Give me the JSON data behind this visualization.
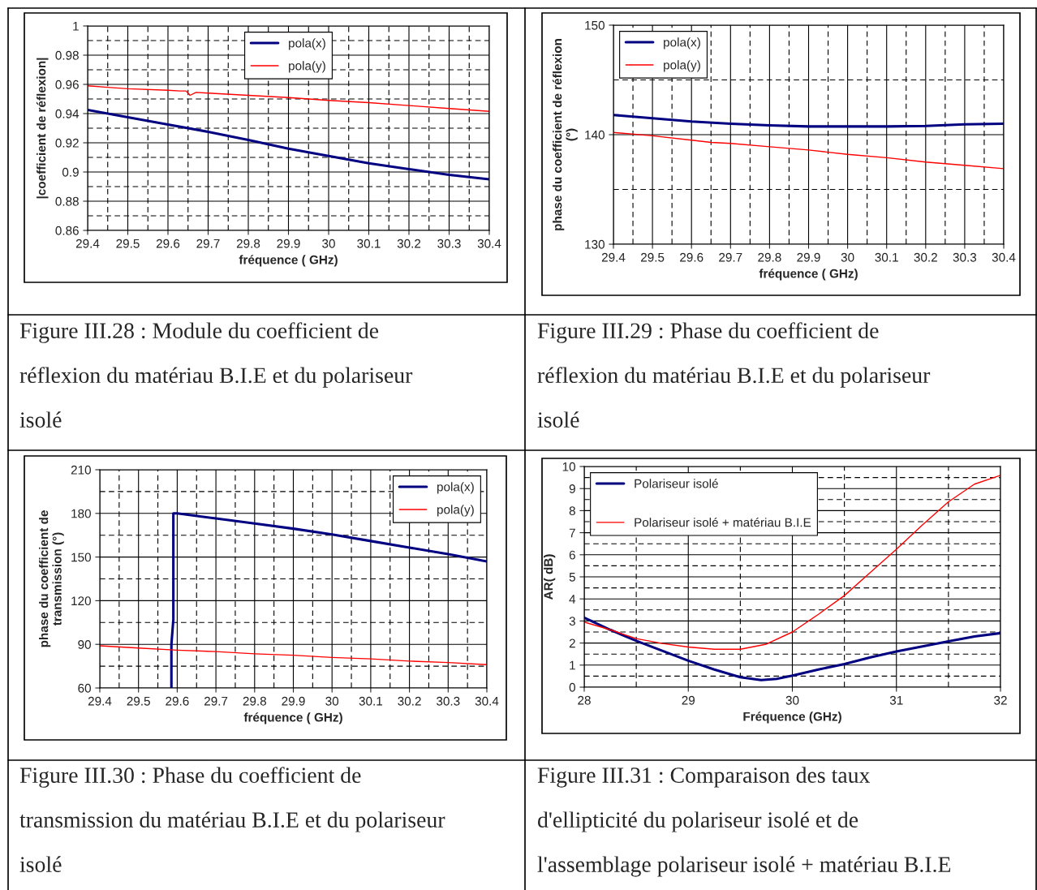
{
  "chart_data": [
    {
      "type": "line",
      "xlabel": "fréquence ( GHz)",
      "ylabel": "|coefficient de réflexion|",
      "xlim": [
        29.4,
        30.4
      ],
      "ylim": [
        0.86,
        1
      ],
      "xticks": [
        29.4,
        29.5,
        29.6,
        29.7,
        29.8,
        29.9,
        30,
        30.1,
        30.2,
        30.3,
        30.4
      ],
      "yticks": [
        0.86,
        0.88,
        0.9,
        0.92,
        0.94,
        0.96,
        0.98,
        1
      ],
      "grid": true,
      "legend": "top",
      "marker": "none",
      "line_style": "solid",
      "series": [
        {
          "name": "pola(x)",
          "color": "#000080",
          "x": [
            29.4,
            29.5,
            29.6,
            29.7,
            29.8,
            29.9,
            30.0,
            30.1,
            30.2,
            30.3,
            30.4
          ],
          "values": [
            0.9425,
            0.9375,
            0.9325,
            0.9275,
            0.922,
            0.916,
            0.911,
            0.906,
            0.902,
            0.898,
            0.895
          ]
        },
        {
          "name": "pola(y)",
          "color": "#ff0000",
          "x": [
            29.4,
            29.45,
            29.5,
            29.6,
            29.63,
            29.645,
            29.655,
            29.67,
            29.7,
            29.8,
            29.9,
            30.0,
            30.1,
            30.2,
            30.3,
            30.4
          ],
          "values": [
            0.959,
            0.958,
            0.957,
            0.956,
            0.9555,
            0.9555,
            0.9525,
            0.9545,
            0.954,
            0.9525,
            0.951,
            0.949,
            0.9475,
            0.9455,
            0.9435,
            0.9415
          ]
        }
      ],
      "annotations": [
        "Figure III.28 : Module du coefficient de",
        "réflexion du matériau B.I.E et du polariseur",
        "isolé"
      ]
    },
    {
      "type": "line",
      "xlabel": "fréquence ( GHz)",
      "ylabel": "phase du coefficient de réflexion\n(°)",
      "xlim": [
        29.4,
        30.4
      ],
      "ylim": [
        130,
        150
      ],
      "xticks": [
        29.4,
        29.5,
        29.6,
        29.7,
        29.8,
        29.9,
        30,
        30.1,
        30.2,
        30.3,
        30.4
      ],
      "yticks": [
        130,
        140,
        150
      ],
      "grid": true,
      "legend": "top left",
      "marker": "none",
      "line_style": "solid",
      "series": [
        {
          "name": "pola(x)",
          "color": "#000080",
          "x": [
            29.4,
            29.5,
            29.6,
            29.7,
            29.8,
            29.9,
            30.0,
            30.1,
            30.2,
            30.3,
            30.4
          ],
          "values": [
            141.8,
            141.5,
            141.2,
            141.0,
            140.85,
            140.75,
            140.75,
            140.75,
            140.8,
            140.95,
            141.0
          ]
        },
        {
          "name": "pola(y)",
          "color": "#ff0000",
          "x": [
            29.4,
            29.5,
            29.6,
            29.65,
            29.7,
            29.8,
            29.9,
            30.0,
            30.1,
            30.2,
            30.3,
            30.4
          ],
          "values": [
            140.2,
            139.9,
            139.5,
            139.3,
            139.2,
            138.9,
            138.6,
            138.2,
            137.9,
            137.5,
            137.2,
            136.9
          ]
        }
      ],
      "annotations": [
        "Figure III.29 : Phase du coefficient de",
        "réflexion du matériau B.I.E et du polariseur",
        "isolé"
      ]
    },
    {
      "type": "line",
      "xlabel": "fréquence ( GHz)",
      "ylabel": "phase du coefficient de\ntransmission (°)",
      "xlim": [
        29.4,
        30.4
      ],
      "ylim": [
        60,
        210
      ],
      "xticks": [
        29.4,
        29.5,
        29.6,
        29.7,
        29.8,
        29.9,
        30,
        30.1,
        30.2,
        30.3,
        30.4
      ],
      "yticks": [
        60,
        90,
        120,
        150,
        180,
        210
      ],
      "grid": true,
      "legend": "top right",
      "marker": "none",
      "line_style": "solid",
      "series": [
        {
          "name": "pola(x)",
          "color": "#000080",
          "x": [
            29.585,
            29.585,
            29.59,
            29.59,
            29.6,
            29.7,
            29.8,
            29.9,
            30.0,
            30.1,
            30.2,
            30.3,
            30.4
          ],
          "values": [
            60,
            90,
            107,
            180,
            180,
            176.5,
            173,
            169.5,
            165.5,
            161,
            156.5,
            152,
            147
          ]
        },
        {
          "name": "pola(y)",
          "color": "#ff0000",
          "x": [
            29.4,
            29.5,
            29.6,
            29.7,
            29.8,
            29.9,
            30.0,
            30.1,
            30.2,
            30.3,
            30.4
          ],
          "values": [
            89,
            87.5,
            86,
            85,
            83.5,
            82.5,
            81,
            80,
            78.5,
            77.5,
            76
          ]
        }
      ],
      "annotations": [
        "Figure III.30 : Phase du coefficient de",
        "transmission du matériau B.I.E et du polariseur",
        "isolé"
      ]
    },
    {
      "type": "line",
      "xlabel": "Fréquence (GHz)",
      "ylabel": "AR( dB)",
      "xlim": [
        28,
        32
      ],
      "ylim": [
        0,
        10
      ],
      "xticks": [
        28,
        29,
        30,
        31,
        32
      ],
      "yticks": [
        0,
        1,
        2,
        3,
        4,
        5,
        6,
        7,
        8,
        9,
        10
      ],
      "grid": true,
      "legend": "top left",
      "marker": "none",
      "line_style": "solid",
      "series": [
        {
          "name": "Polariseur isolé",
          "color": "#000080",
          "x": [
            28,
            28.25,
            28.5,
            28.75,
            29,
            29.25,
            29.5,
            29.7,
            29.85,
            30,
            30.25,
            30.5,
            30.75,
            31,
            31.25,
            31.5,
            31.75,
            32
          ],
          "values": [
            3.15,
            2.6,
            2.1,
            1.65,
            1.2,
            0.8,
            0.45,
            0.32,
            0.38,
            0.52,
            0.8,
            1.05,
            1.35,
            1.62,
            1.85,
            2.08,
            2.3,
            2.45
          ]
        },
        {
          "name": "Polariseur isolé + matériau B.I.E",
          "color": "#ff0000",
          "x": [
            28,
            28.25,
            28.5,
            28.75,
            29,
            29.25,
            29.5,
            29.75,
            30,
            30.25,
            30.5,
            30.75,
            31,
            31.25,
            31.5,
            31.75,
            32
          ],
          "values": [
            2.95,
            2.6,
            2.2,
            1.98,
            1.82,
            1.72,
            1.72,
            1.95,
            2.5,
            3.3,
            4.15,
            5.2,
            6.25,
            7.35,
            8.4,
            9.2,
            9.6
          ]
        }
      ],
      "annotations": [
        "Figure III.31 : Comparaison des taux",
        "d'ellipticité du polariseur isolé et de",
        "l'assemblage polariseur isolé + matériau B.I.E"
      ]
    }
  ]
}
